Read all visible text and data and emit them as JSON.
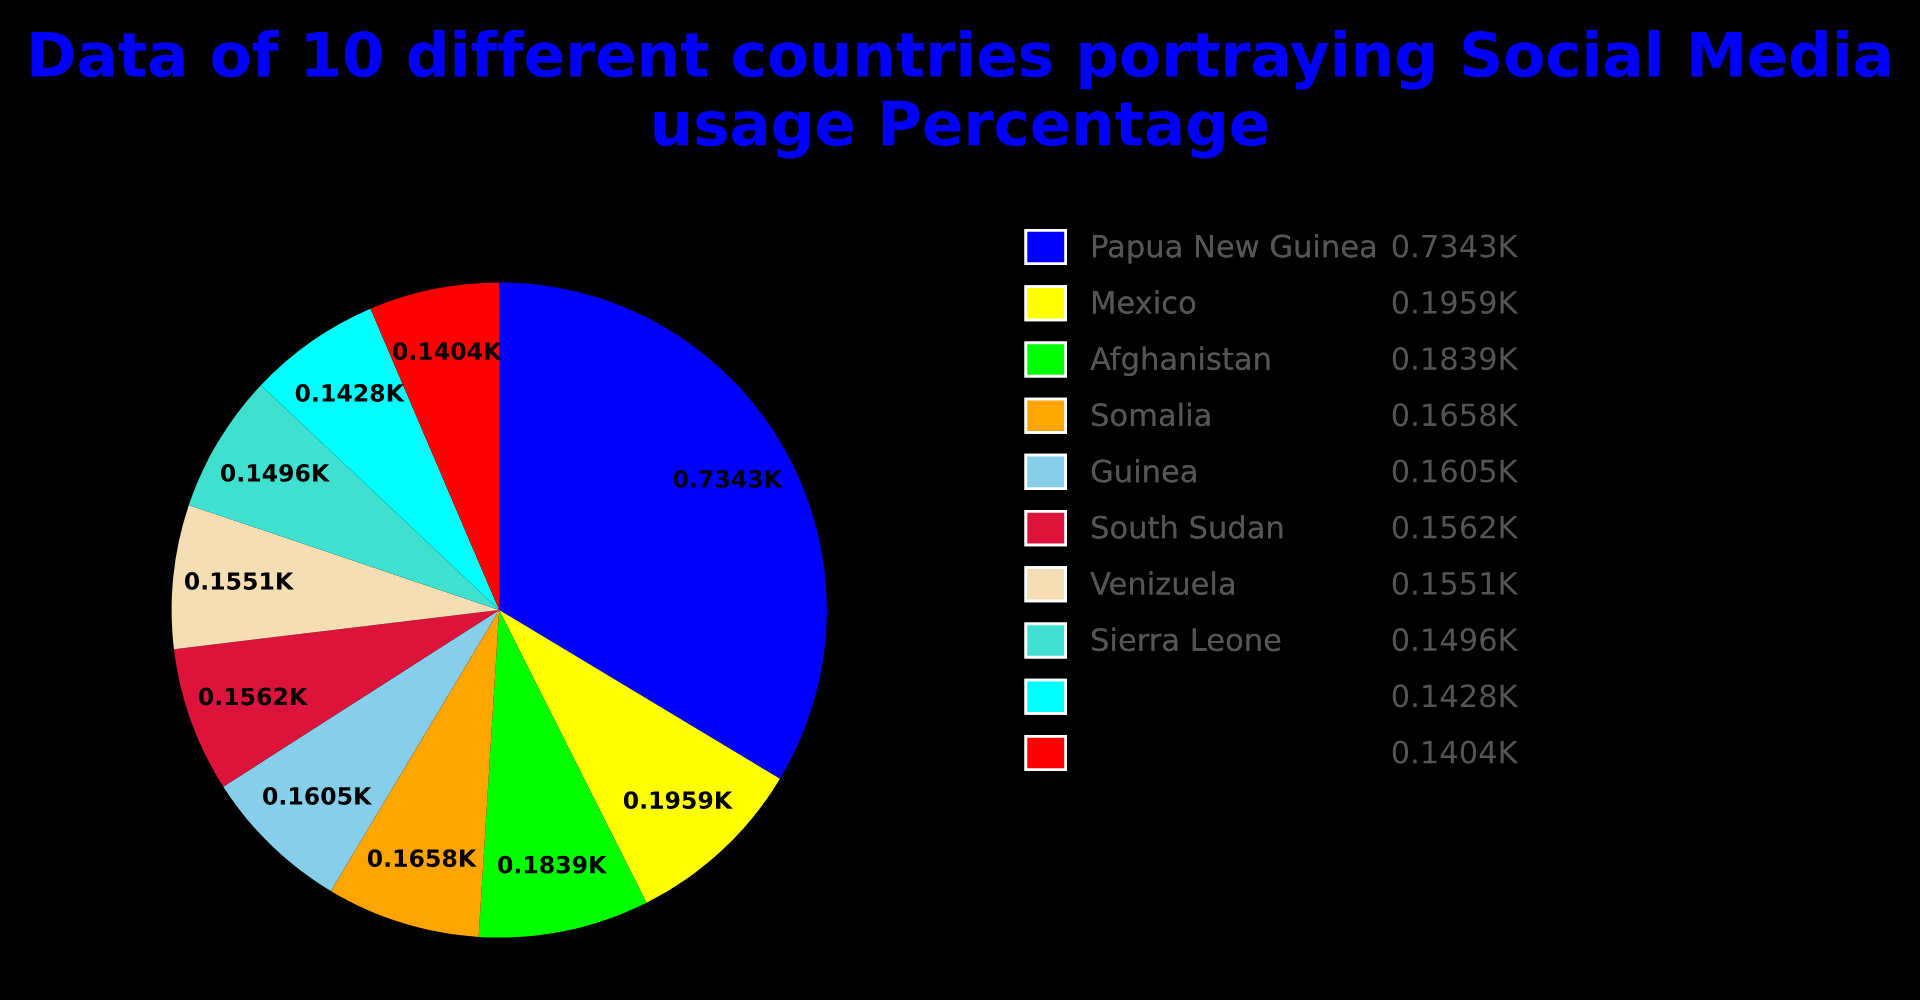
{
  "chart_data": {
    "type": "pie",
    "title": "Data of 10 different countries portraying Social Media usage Percentage",
    "categories": [
      "Papua New Guinea",
      "Mexico",
      "Afghanistan",
      "Somalia",
      "Guinea",
      "South Sudan",
      "Venizuela",
      "Sierra Leone",
      null,
      null
    ],
    "values": [
      0.7343,
      0.1959,
      0.1839,
      0.1658,
      0.1605,
      0.1562,
      0.1551,
      0.1496,
      0.1428,
      0.1404
    ],
    "value_labels": [
      "0.7343K",
      "0.1959K",
      "0.1839K",
      "0.1658K",
      "0.1605K",
      "0.1562K",
      "0.1551K",
      "0.1496K",
      "0.1428K",
      "0.1404K"
    ],
    "colors": [
      "#0000ff",
      "#ffff00",
      "#00ff00",
      "#ffa500",
      "#87ceeb",
      "#dc143c",
      "#f5deb3",
      "#40e0d0",
      "#00ffff",
      "#ff0000"
    ],
    "legend": "right"
  }
}
